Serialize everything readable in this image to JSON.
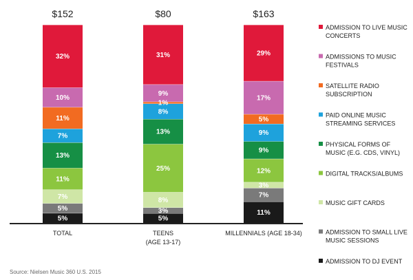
{
  "chart_data": {
    "type": "bar",
    "stacked": true,
    "unit": "%",
    "categories": [
      {
        "label": "TOTAL",
        "sublabel": "",
        "total": "$152"
      },
      {
        "label": "TEENS",
        "sublabel": "(AGE 13-17)",
        "total": "$80"
      },
      {
        "label": "MILLENNIALS (AGE 18-34)",
        "sublabel": "",
        "total": "$163"
      }
    ],
    "series": [
      {
        "name": "ADMISSION TO DJ EVENT",
        "legend_lines": [
          "ADMISSION TO DJ EVENT"
        ],
        "color": "#1a1a1a",
        "values": [
          5,
          5,
          11
        ]
      },
      {
        "name": "ADMISSION TO SMALL LIVE MUSIC SESSIONS",
        "legend_lines": [
          "ADMISSION TO SMALL LIVE",
          "MUSIC SESSIONS"
        ],
        "color": "#7a7a7a",
        "values": [
          5,
          3,
          7
        ]
      },
      {
        "name": "MUSIC GIFT CARDS",
        "legend_lines": [
          "MUSIC GIFT CARDS"
        ],
        "color": "#cfe6a6",
        "values": [
          7,
          8,
          3
        ]
      },
      {
        "name": "DIGITAL TRACKS/ALBUMS",
        "legend_lines": [
          "DIGITAL TRACKS/ALBUMS"
        ],
        "color": "#8cc63f",
        "values": [
          11,
          25,
          12
        ]
      },
      {
        "name": "PHYSICAL FORMS OF MUSIC (E.G. CDS, VINYL)",
        "legend_lines": [
          "PHYSICAL FORMS OF",
          "MUSIC (E.G.  CDS, VINYL)"
        ],
        "color": "#168f45",
        "values": [
          13,
          13,
          9
        ]
      },
      {
        "name": "PAID ONLINE MUSIC STREAMING SERVICES",
        "legend_lines": [
          "PAID ONLINE MUSIC",
          "STREAMING SERVICES"
        ],
        "color": "#1ea2dc",
        "values": [
          7,
          8,
          9
        ]
      },
      {
        "name": "SATELLITE RADIO SUBSCRIPTION",
        "legend_lines": [
          "SATELLITE RADIO",
          "SUBSCRIPTION"
        ],
        "color": "#f26b21",
        "values": [
          11,
          1,
          5
        ]
      },
      {
        "name": "ADMISSIONS TO MUSIC FESTIVALS",
        "legend_lines": [
          "ADMISSIONS TO MUSIC",
          "FESTIVALS"
        ],
        "color": "#c86aaf",
        "values": [
          10,
          9,
          17
        ]
      },
      {
        "name": "ADMISSION TO LIVE MUSIC CONCERTS",
        "legend_lines": [
          "ADMISSION TO LIVE MUSIC",
          "CONCERTS"
        ],
        "color": "#e0193a",
        "values": [
          32,
          31,
          29
        ]
      }
    ],
    "source": "Source: Nielsen Music 360 U.S. 2015"
  }
}
